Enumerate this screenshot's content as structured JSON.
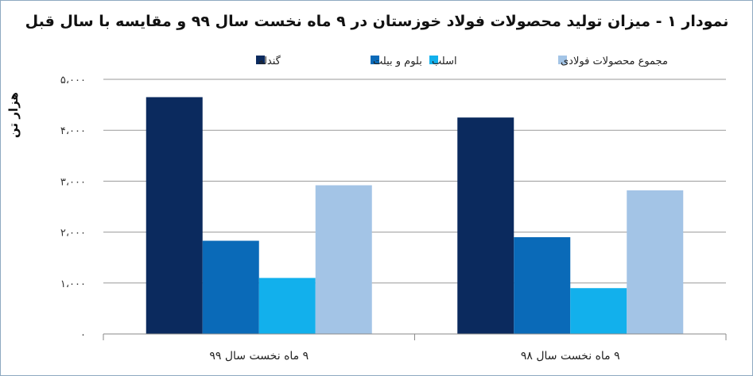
{
  "chart_data": {
    "type": "bar",
    "title": "نمودار ۱ - میزان تولید محصولات فولاد خوزستان در ۹ ماه نخست سال ۹۹ و مقایسه با سال قبل",
    "ylabel": "هزار تن",
    "xlabel": "",
    "ylim": [
      0,
      5000
    ],
    "yticks": [
      0,
      1000,
      2000,
      3000,
      4000,
      5000
    ],
    "ytick_labels": [
      "۰",
      "۱،۰۰۰",
      "۲،۰۰۰",
      "۳،۰۰۰",
      "۴،۰۰۰",
      "۵،۰۰۰"
    ],
    "categories": [
      "۹ ماه نخست سال ۹۹",
      "۹ ماه نخست سال ۹۸"
    ],
    "series": [
      {
        "name": "گندله",
        "color": "#0b2a5e",
        "values": [
          4650,
          4250
        ]
      },
      {
        "name": "بلوم و بیلت",
        "color": "#0a6ab8",
        "values": [
          1830,
          1900
        ]
      },
      {
        "name": "اسلب",
        "color": "#12b0ec",
        "values": [
          1100,
          900
        ]
      },
      {
        "name": "مجموع محصولات فولادی",
        "color": "#a3c4e6",
        "values": [
          2920,
          2820
        ]
      }
    ],
    "grid": true,
    "legend_position": "top"
  }
}
